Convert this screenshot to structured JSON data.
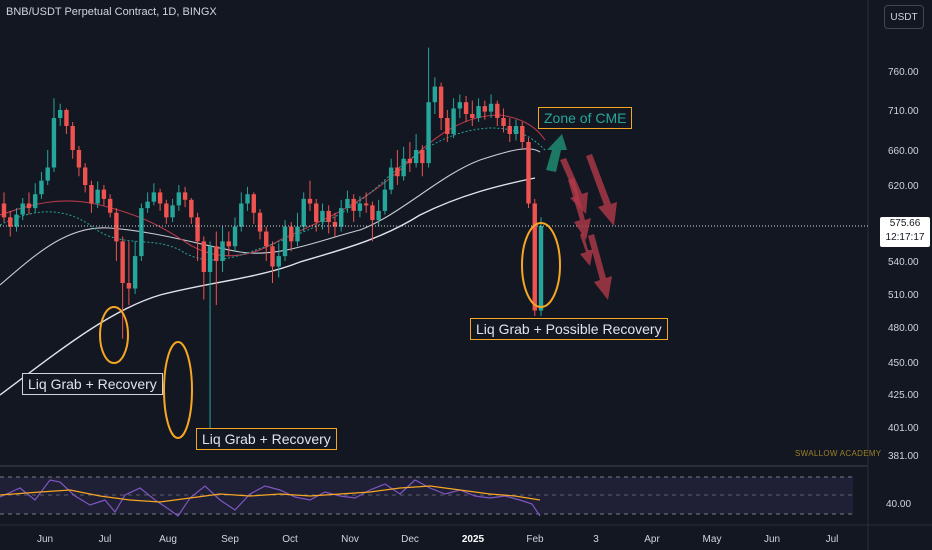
{
  "chart_data": {
    "type": "candlestick",
    "title": "BNB/USDT Perpetual Contract, 1D, BINGX",
    "currency": "USDT",
    "y_ticks": [
      760,
      710,
      660,
      620,
      575.66,
      540,
      510,
      480,
      450,
      425,
      401,
      381
    ],
    "y_tick_labels": [
      "760.00",
      "710.00",
      "660.00",
      "620.00",
      "",
      "540.00",
      "510.00",
      "480.00",
      "450.00",
      "425.00",
      "401.00",
      "381.00"
    ],
    "x_ticks": [
      "Jun",
      "Jul",
      "Aug",
      "Sep",
      "Oct",
      "Nov",
      "Dec",
      "2025",
      "Feb",
      "3",
      "Apr",
      "May",
      "Jun",
      "Jul"
    ],
    "last_price": {
      "value": 575.66,
      "label": "575.66",
      "countdown": "12:17:17"
    },
    "rsi_tick": {
      "value": 40,
      "label": "40.00"
    },
    "watermark": "SWALLOW ACADEMY",
    "annotations": [
      {
        "text": "Liq Grab + Recovery"
      },
      {
        "text": "Liq Grab + Recovery"
      },
      {
        "text": "Zone of CME"
      },
      {
        "text": "Liq Grab + Possible Recovery"
      }
    ],
    "series": [
      {
        "values": [
          [
            600,
            585,
            612,
            580
          ],
          [
            585,
            575,
            592,
            565
          ],
          [
            575,
            588,
            595,
            570
          ],
          [
            588,
            600,
            606,
            582
          ],
          [
            600,
            595,
            612,
            588
          ],
          [
            595,
            610,
            622,
            590
          ],
          [
            610,
            625,
            635,
            605
          ],
          [
            625,
            640,
            660,
            620
          ],
          [
            640,
            700,
            725,
            635
          ],
          [
            700,
            710,
            718,
            690
          ],
          [
            710,
            690,
            712,
            680
          ],
          [
            690,
            660,
            695,
            650
          ],
          [
            660,
            640,
            665,
            630
          ],
          [
            640,
            620,
            645,
            612
          ],
          [
            620,
            600,
            625,
            590
          ],
          [
            600,
            615,
            624,
            595
          ],
          [
            615,
            605,
            620,
            598
          ],
          [
            605,
            590,
            610,
            585
          ],
          [
            590,
            560,
            595,
            540
          ],
          [
            560,
            520,
            565,
            470
          ],
          [
            520,
            515,
            560,
            500
          ],
          [
            515,
            545,
            560,
            510
          ],
          [
            545,
            595,
            600,
            540
          ],
          [
            595,
            602,
            612,
            590
          ],
          [
            602,
            612,
            622,
            598
          ],
          [
            612,
            600,
            616,
            592
          ],
          [
            600,
            585,
            604,
            578
          ],
          [
            585,
            598,
            605,
            580
          ],
          [
            598,
            612,
            620,
            592
          ],
          [
            612,
            604,
            618,
            596
          ],
          [
            604,
            585,
            606,
            578
          ],
          [
            585,
            560,
            590,
            540
          ],
          [
            560,
            530,
            565,
            505
          ],
          [
            530,
            555,
            560,
            400
          ],
          [
            555,
            540,
            570,
            500
          ],
          [
            540,
            560,
            575,
            530
          ],
          [
            560,
            555,
            570,
            545
          ],
          [
            555,
            575,
            585,
            550
          ],
          [
            575,
            600,
            612,
            570
          ],
          [
            600,
            610,
            618,
            592
          ],
          [
            610,
            590,
            612,
            578
          ],
          [
            590,
            570,
            594,
            562
          ],
          [
            570,
            555,
            575,
            540
          ],
          [
            555,
            535,
            560,
            520
          ],
          [
            535,
            545,
            558,
            525
          ],
          [
            545,
            575,
            582,
            540
          ],
          [
            575,
            560,
            580,
            550
          ],
          [
            560,
            575,
            590,
            555
          ],
          [
            575,
            605,
            612,
            570
          ],
          [
            605,
            600,
            625,
            592
          ],
          [
            600,
            580,
            605,
            570
          ],
          [
            580,
            592,
            600,
            572
          ],
          [
            592,
            580,
            598,
            568
          ],
          [
            580,
            575,
            590,
            565
          ],
          [
            575,
            595,
            604,
            570
          ],
          [
            595,
            605,
            614,
            590
          ],
          [
            605,
            592,
            610,
            580
          ],
          [
            592,
            600,
            608,
            585
          ],
          [
            600,
            598,
            612,
            590
          ],
          [
            598,
            582,
            602,
            560
          ],
          [
            582,
            592,
            604,
            575
          ],
          [
            592,
            615,
            625,
            588
          ],
          [
            615,
            640,
            650,
            610
          ],
          [
            640,
            630,
            660,
            620
          ],
          [
            630,
            650,
            664,
            625
          ],
          [
            650,
            645,
            670,
            635
          ],
          [
            645,
            660,
            680,
            640
          ],
          [
            660,
            645,
            666,
            630
          ],
          [
            645,
            720,
            790,
            640
          ],
          [
            720,
            740,
            752,
            705
          ],
          [
            740,
            700,
            745,
            685
          ],
          [
            700,
            680,
            710,
            670
          ],
          [
            680,
            712,
            725,
            675
          ],
          [
            712,
            720,
            730,
            700
          ],
          [
            720,
            705,
            728,
            695
          ],
          [
            705,
            700,
            722,
            690
          ],
          [
            700,
            715,
            725,
            695
          ],
          [
            715,
            708,
            722,
            698
          ],
          [
            708,
            718,
            730,
            700
          ],
          [
            718,
            700,
            722,
            690
          ],
          [
            700,
            690,
            712,
            682
          ],
          [
            690,
            680,
            700,
            670
          ],
          [
            680,
            690,
            698,
            672
          ],
          [
            690,
            670,
            695,
            660
          ],
          [
            670,
            600,
            675,
            595
          ],
          [
            600,
            495,
            605,
            490
          ],
          [
            495,
            575.66,
            585,
            490
          ]
        ]
      }
    ]
  }
}
